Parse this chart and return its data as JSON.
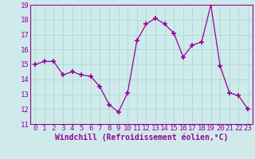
{
  "x": [
    0,
    1,
    2,
    3,
    4,
    5,
    6,
    7,
    8,
    9,
    10,
    11,
    12,
    13,
    14,
    15,
    16,
    17,
    18,
    19,
    20,
    21,
    22,
    23
  ],
  "y": [
    15.0,
    15.2,
    15.2,
    14.3,
    14.5,
    14.3,
    14.2,
    13.5,
    12.3,
    11.8,
    13.1,
    16.6,
    17.7,
    18.1,
    17.7,
    17.1,
    15.5,
    16.3,
    16.5,
    19.0,
    14.9,
    13.1,
    12.9,
    12.0
  ],
  "line_color": "#990099",
  "marker_color": "#990099",
  "bg_color": "#ceeaea",
  "grid_color": "#aad4d4",
  "xlabel_text": "Windchill (Refroidissement éolien,°C)",
  "xlim": [
    -0.5,
    23.5
  ],
  "ylim": [
    11,
    19
  ],
  "yticks": [
    11,
    12,
    13,
    14,
    15,
    16,
    17,
    18,
    19
  ],
  "xticks": [
    0,
    1,
    2,
    3,
    4,
    5,
    6,
    7,
    8,
    9,
    10,
    11,
    12,
    13,
    14,
    15,
    16,
    17,
    18,
    19,
    20,
    21,
    22,
    23
  ],
  "xtick_labels": [
    "0",
    "1",
    "2",
    "3",
    "4",
    "5",
    "6",
    "7",
    "8",
    "9",
    "10",
    "11",
    "12",
    "13",
    "14",
    "15",
    "16",
    "17",
    "18",
    "19",
    "20",
    "21",
    "22",
    "23"
  ],
  "ytick_labels": [
    "11",
    "12",
    "13",
    "14",
    "15",
    "16",
    "17",
    "18",
    "19"
  ],
  "axis_label_fontsize": 7,
  "tick_fontsize": 6.5
}
